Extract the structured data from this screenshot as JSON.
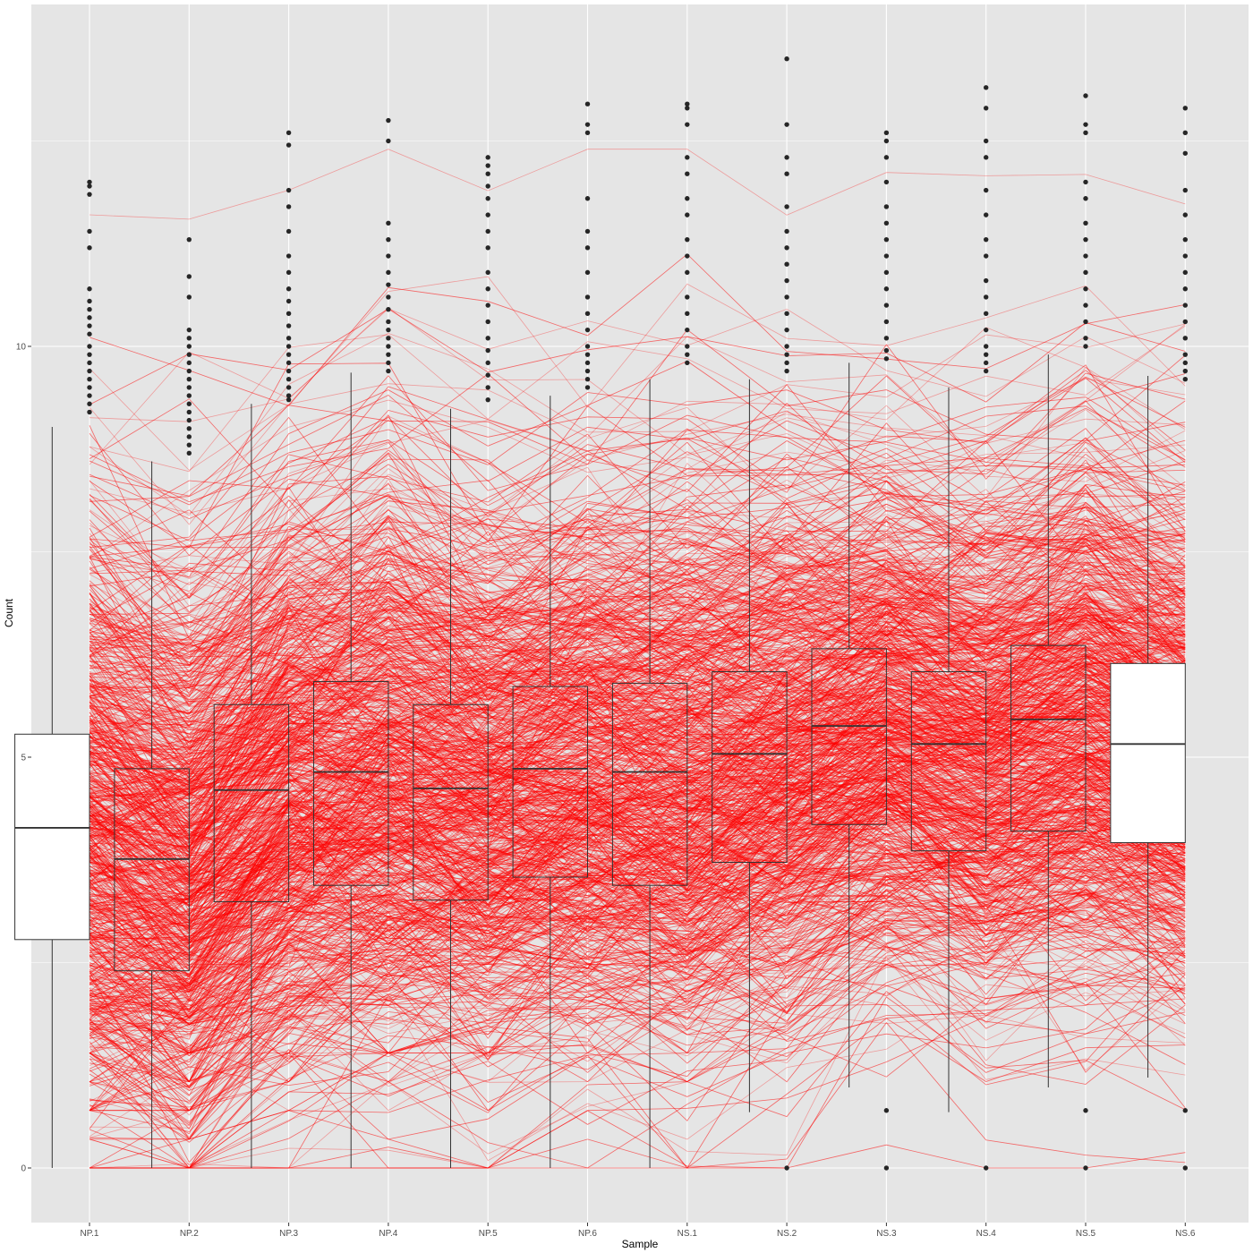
{
  "chart_data": {
    "type": "box+parallel-lines",
    "xlabel": "Sample",
    "ylabel": "Count",
    "categories": [
      "NP.1",
      "NP.2",
      "NP.3",
      "NP.4",
      "NP.5",
      "NP.6",
      "NS.1",
      "NS.2",
      "NS.3",
      "NS.4",
      "NS.5",
      "NS.6"
    ],
    "y_ticks": [
      0,
      5,
      10
    ],
    "y_tick_labels": [
      "0",
      "5",
      "10"
    ],
    "ylim": [
      -0.28,
      13.7
    ],
    "grid": true,
    "legend": "none",
    "line_color": "#ff0000",
    "line_count": 1500,
    "boxes": [
      {
        "name": "NP.1",
        "q1": 2.78,
        "median": 4.14,
        "q3": 5.28,
        "whisker_low": 0,
        "whisker_high": 9.02
      },
      {
        "name": "NP.2",
        "q1": 2.4,
        "median": 3.76,
        "q3": 4.86,
        "whisker_low": 0,
        "whisker_high": 8.6
      },
      {
        "name": "NP.3",
        "q1": 3.24,
        "median": 4.6,
        "q3": 5.64,
        "whisker_low": 0,
        "whisker_high": 9.3
      },
      {
        "name": "NP.4",
        "q1": 3.44,
        "median": 4.82,
        "q3": 5.92,
        "whisker_low": 0,
        "whisker_high": 9.68
      },
      {
        "name": "NP.5",
        "q1": 3.26,
        "median": 4.62,
        "q3": 5.64,
        "whisker_low": 0,
        "whisker_high": 9.24
      },
      {
        "name": "NP.6",
        "q1": 3.54,
        "median": 4.86,
        "q3": 5.86,
        "whisker_low": 0,
        "whisker_high": 9.4
      },
      {
        "name": "NS.1",
        "q1": 3.44,
        "median": 4.82,
        "q3": 5.9,
        "whisker_low": 0,
        "whisker_high": 9.6
      },
      {
        "name": "NS.2",
        "q1": 3.72,
        "median": 5.04,
        "q3": 6.04,
        "whisker_low": 0.68,
        "whisker_high": 9.6
      },
      {
        "name": "NS.3",
        "q1": 4.18,
        "median": 5.38,
        "q3": 6.32,
        "whisker_low": 0.98,
        "whisker_high": 9.8
      },
      {
        "name": "NS.4",
        "q1": 3.86,
        "median": 5.16,
        "q3": 6.04,
        "whisker_low": 0.68,
        "whisker_high": 9.5
      },
      {
        "name": "NS.5",
        "q1": 4.1,
        "median": 5.46,
        "q3": 6.36,
        "whisker_low": 0.98,
        "whisker_high": 9.9
      },
      {
        "name": "NS.6",
        "q1": 3.96,
        "median": 5.16,
        "q3": 6.14,
        "whisker_low": 1.1,
        "whisker_high": 9.64
      }
    ],
    "outliers": [
      [
        12.0,
        11.95,
        11.85,
        11.4,
        11.2,
        10.7,
        10.55,
        10.45,
        10.35,
        10.25,
        10.15,
        10.0,
        9.9,
        9.8,
        9.7,
        9.6,
        9.5,
        9.4,
        9.3,
        9.2
      ],
      [
        11.3,
        10.85,
        10.6,
        10.2,
        10.1,
        10.0,
        9.9,
        9.8,
        9.7,
        9.6,
        9.5,
        9.4,
        9.3,
        9.2,
        9.1,
        9.0,
        8.9,
        8.8,
        8.7
      ],
      [
        12.6,
        12.45,
        11.9,
        11.7,
        11.4,
        11.1,
        10.9,
        10.7,
        10.55,
        10.4,
        10.25,
        10.1,
        10.0,
        9.9,
        9.8,
        9.7,
        9.6,
        9.5,
        9.4,
        9.35
      ],
      [
        12.75,
        12.5,
        11.5,
        11.3,
        11.1,
        10.9,
        10.75,
        10.6,
        10.45,
        10.3,
        10.2,
        10.1,
        10.0,
        9.9,
        9.8,
        9.7
      ],
      [
        12.3,
        12.2,
        12.1,
        11.95,
        11.8,
        11.6,
        11.4,
        11.2,
        10.9,
        10.7,
        10.5,
        10.3,
        10.1,
        9.95,
        9.8,
        9.65,
        9.5,
        9.35
      ],
      [
        12.95,
        12.7,
        12.6,
        11.8,
        11.4,
        11.2,
        10.9,
        10.6,
        10.4,
        10.2,
        10.0,
        9.9,
        9.8,
        9.7,
        9.6,
        9.5
      ],
      [
        12.95,
        12.9,
        12.7,
        12.3,
        12.1,
        11.8,
        11.6,
        11.3,
        11.1,
        10.9,
        10.6,
        10.4,
        10.2,
        10.0,
        9.9,
        9.8
      ],
      [
        13.5,
        12.7,
        12.3,
        12.1,
        11.7,
        11.4,
        11.2,
        11.0,
        10.8,
        10.6,
        10.4,
        10.2,
        10.0,
        9.9,
        9.8,
        9.7,
        0
      ],
      [
        12.6,
        12.5,
        12.3,
        12.0,
        11.7,
        11.5,
        11.3,
        11.1,
        10.9,
        10.7,
        10.5,
        10.3,
        10.1,
        9.95,
        9.85,
        0.7,
        0
      ],
      [
        13.15,
        12.9,
        12.5,
        12.3,
        11.9,
        11.6,
        11.3,
        11.1,
        10.8,
        10.6,
        10.4,
        10.2,
        10.0,
        9.9,
        9.8,
        9.7,
        0
      ],
      [
        13.05,
        12.7,
        12.6,
        12.0,
        11.8,
        11.5,
        11.3,
        11.1,
        10.9,
        10.7,
        10.5,
        10.3,
        10.1,
        10.0,
        0.7,
        0
      ],
      [
        12.9,
        12.6,
        12.35,
        11.9,
        11.6,
        11.3,
        11.1,
        10.9,
        10.7,
        10.5,
        10.3,
        10.1,
        9.9,
        9.8,
        9.7,
        9.6,
        0.7,
        0
      ]
    ]
  }
}
